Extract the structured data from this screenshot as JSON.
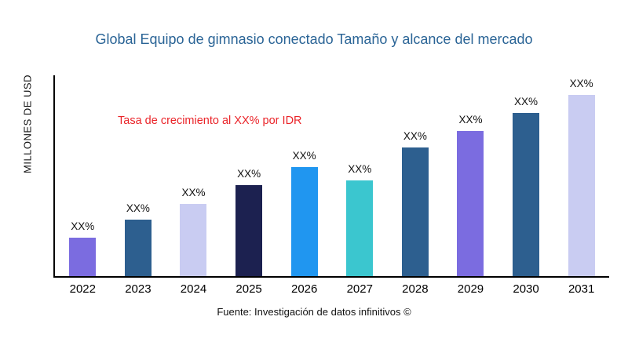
{
  "chart_data": {
    "type": "bar",
    "title": "Global Equipo de gimnasio conectado Tamaño y alcance del mercado",
    "ylabel": "MILLONES DE USD",
    "xlabel": "",
    "annotation": "Tasa de crecimiento al XX% por IDR",
    "categories": [
      "2022",
      "2023",
      "2024",
      "2025",
      "2026",
      "2027",
      "2028",
      "2029",
      "2030",
      "2031"
    ],
    "values": [
      21,
      31,
      40,
      50,
      60,
      53,
      71,
      80,
      90,
      100
    ],
    "bar_labels": [
      "XX%",
      "XX%",
      "XX%",
      "XX%",
      "XX%",
      "XX%",
      "XX%",
      "XX%",
      "XX%",
      "XX%"
    ],
    "bar_colors": [
      "#7B6CE0",
      "#2D5F8F",
      "#C9CCF2",
      "#1C2150",
      "#2096F0",
      "#3BC6CF",
      "#2D5F8F",
      "#7B6CE0",
      "#2D5F8F",
      "#C9CCF2"
    ],
    "ylim": [
      0,
      100
    ],
    "grid": false,
    "legend": false
  },
  "footer": {
    "source": "Fuente: Investigación de datos infinitivos ©"
  },
  "colors": {
    "title": "#2A6496",
    "annotation": "#EA2429",
    "axis": "#000000"
  }
}
